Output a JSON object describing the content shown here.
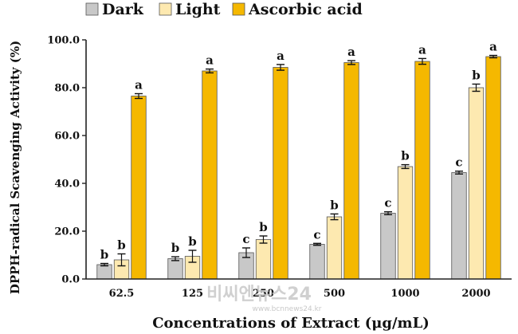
{
  "chart_data": {
    "type": "bar",
    "ylabel": "DPPH-radical Scavenging Activity (%)",
    "xlabel": "Concentrations of Extract (μg/mL)",
    "ylim": [
      0,
      100
    ],
    "yticks": [
      "0.0",
      "20.0",
      "40.0",
      "60.0",
      "80.0",
      "100.0"
    ],
    "categories": [
      "62.5",
      "125",
      "250",
      "500",
      "1000",
      "2000"
    ],
    "legend_position": "top",
    "grid": false,
    "series": [
      {
        "name": "Dark",
        "color": "#c8c8c8",
        "values": [
          6.0,
          8.5,
          11.0,
          14.5,
          27.5,
          44.5
        ],
        "errors": [
          0.5,
          0.8,
          2.0,
          0.4,
          0.6,
          0.6
        ],
        "labels": [
          "b",
          "b",
          "c",
          "c",
          "c",
          "c"
        ]
      },
      {
        "name": "Light",
        "color": "#fde9b0",
        "values": [
          8.0,
          9.5,
          16.5,
          26.0,
          47.0,
          80.0
        ],
        "errors": [
          2.5,
          2.5,
          1.5,
          1.2,
          0.8,
          1.5
        ],
        "labels": [
          "b",
          "b",
          "b",
          "b",
          "b",
          "b"
        ]
      },
      {
        "name": "Ascorbic acid",
        "color": "#f5b800",
        "values": [
          76.5,
          87.0,
          88.5,
          90.5,
          91.0,
          93.0
        ],
        "errors": [
          1.0,
          0.8,
          1.2,
          0.8,
          1.2,
          0.5
        ],
        "labels": [
          "a",
          "a",
          "a",
          "a",
          "a",
          "a"
        ]
      }
    ]
  },
  "watermark": {
    "text": "비씨엔뉴스24",
    "subtext": "www.bcnnews24.kr"
  }
}
